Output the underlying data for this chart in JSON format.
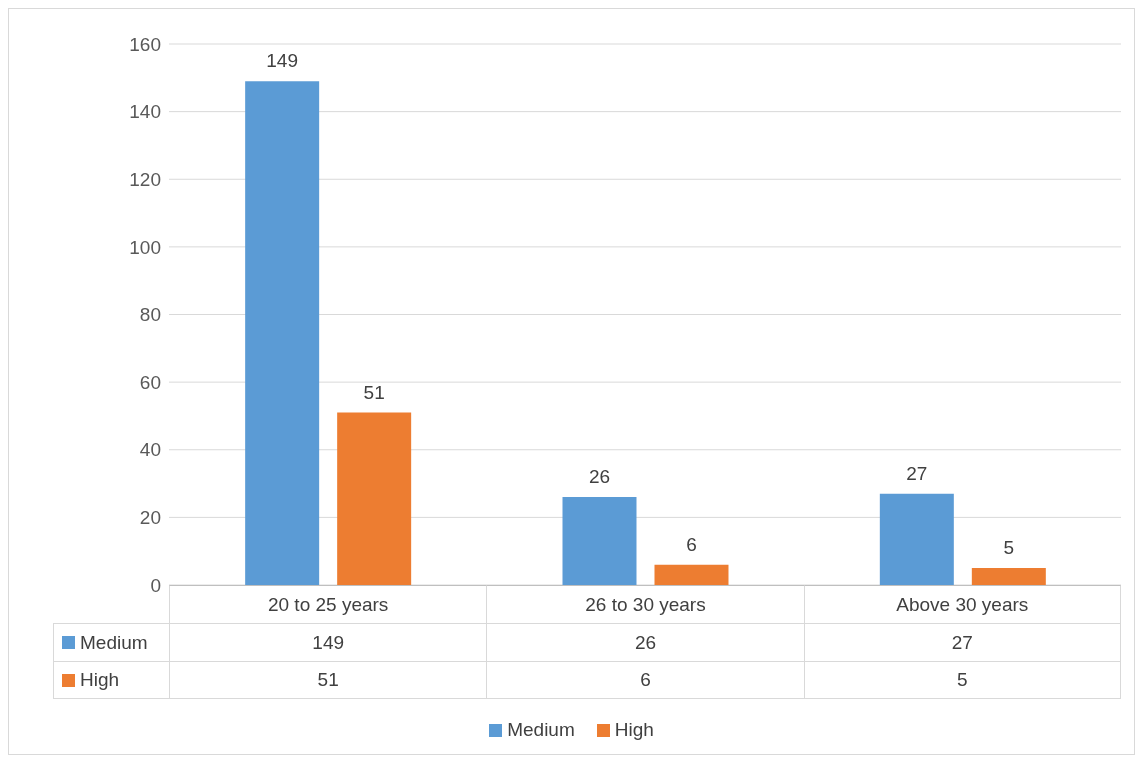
{
  "chart_data": {
    "type": "bar",
    "categories": [
      "20 to 25 years",
      "26 to 30 years",
      "Above 30 years"
    ],
    "series": [
      {
        "name": "Medium",
        "color": "#5b9bd5",
        "values": [
          149,
          26,
          27
        ],
        "value_labels": [
          "149",
          "26",
          "27"
        ]
      },
      {
        "name": "High",
        "color": "#ed7d31",
        "values": [
          51,
          6,
          5
        ],
        "value_labels": [
          "51",
          "6",
          "5"
        ]
      }
    ],
    "ylim": [
      0,
      160
    ],
    "yticks": [
      0,
      20,
      40,
      60,
      80,
      100,
      120,
      140,
      160
    ],
    "grid": "y",
    "data_labels": true,
    "annotations": [
      "149",
      "26",
      "27",
      "51",
      "6",
      "5"
    ],
    "legend": "bottom"
  }
}
